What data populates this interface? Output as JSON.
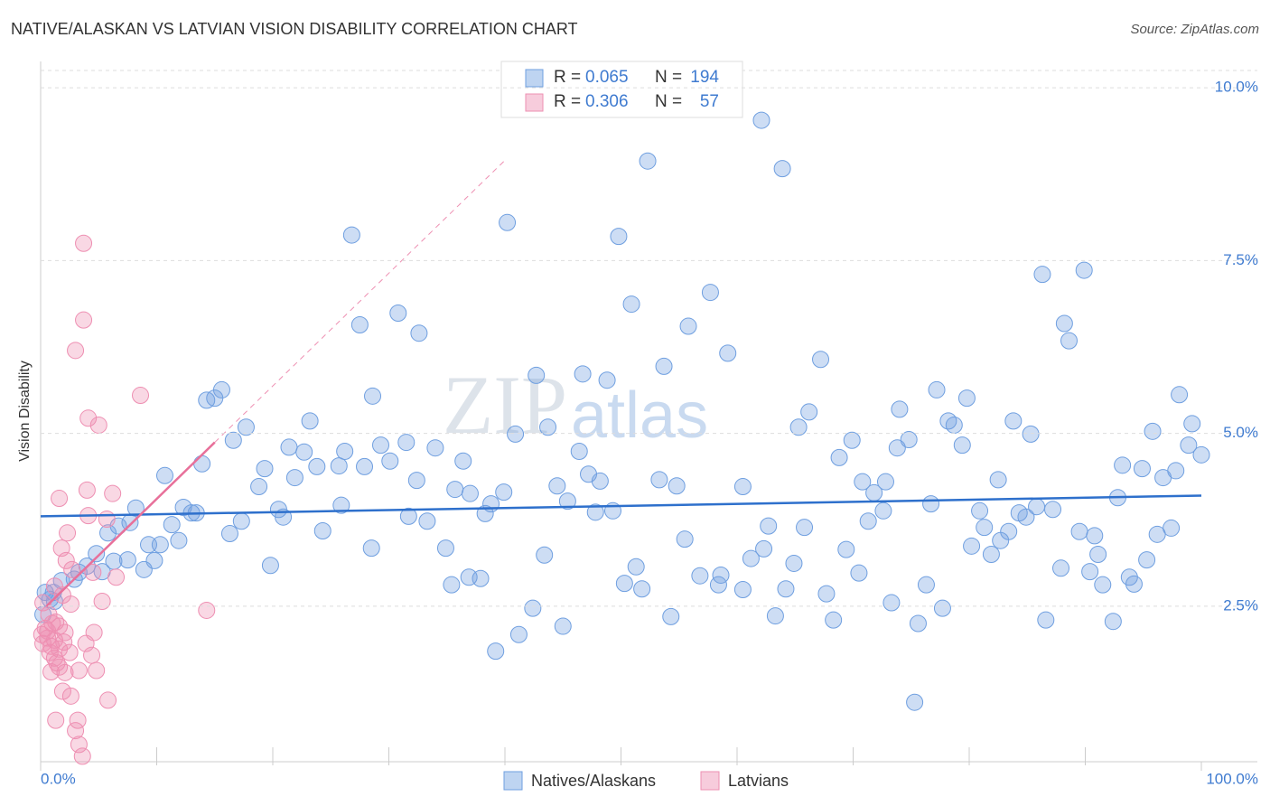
{
  "chart_data": {
    "type": "scatter",
    "title": "NATIVE/ALASKAN VS LATVIAN VISION DISABILITY CORRELATION CHART",
    "source": "Source: ZipAtlas.com",
    "y_label": "Vision Disability",
    "watermark": [
      "ZIP",
      "atlas"
    ],
    "xlim": [
      0,
      100
    ],
    "ylim": [
      0.25,
      10.25
    ],
    "xticks": [
      {
        "value": 0,
        "label": "0.0%"
      },
      {
        "value": 100,
        "label": "100.0%"
      }
    ],
    "xminorticks": [
      10,
      20,
      30,
      40,
      50,
      60,
      70,
      80,
      90
    ],
    "yticks": [
      {
        "value": 2.5,
        "label": "2.5%"
      },
      {
        "value": 5,
        "label": "5.0%"
      },
      {
        "value": 7.5,
        "label": "7.5%"
      },
      {
        "value": 10,
        "label": "10.0%"
      }
    ],
    "grid": true,
    "legend_labels": {
      "r": "R =",
      "n": "N ="
    },
    "series": [
      {
        "name": "Natives/Alaskans",
        "color": "#6f9fe0",
        "r": 0.065,
        "n": 194,
        "x": [
          62.1,
          52.3,
          63.9,
          40.2,
          49.8,
          26.8,
          86.3,
          89.9,
          57.7,
          50.9,
          30.8,
          27.5,
          55.8,
          32.6,
          88.2,
          88.6,
          59.2,
          67.2,
          53.7,
          42.7,
          46.7,
          48.8,
          77.2,
          79.8,
          98.1,
          15.6,
          15.0,
          14.3,
          28.6,
          74.0,
          66.2,
          78.2,
          83.8,
          99.2,
          23.2,
          17.7,
          43.7,
          65.3,
          78.7,
          95.8,
          40.9,
          85.3,
          16.6,
          69.9,
          74.8,
          21.4,
          31.5,
          29.3,
          34.0,
          73.8,
          79.4,
          98.9,
          22.7,
          26.2,
          13.9,
          46.4,
          36.4,
          100,
          30.1,
          25.7,
          19.3,
          27.9,
          23.8,
          47.2,
          68.8,
          93.2,
          94.9,
          97.8,
          96.7,
          10.7,
          32.4,
          21.9,
          53.3,
          82.5,
          48.2,
          44.5,
          18.8,
          54.8,
          70.8,
          72.8,
          35.7,
          60.5,
          37.0,
          39.9,
          71.8,
          8.2,
          12.3,
          45.4,
          92.8,
          25.9,
          38.8,
          76.7,
          13.0,
          49.3,
          85.8,
          87.2,
          20.5,
          47.8,
          80.9,
          72.6,
          13.4,
          38.3,
          84.3,
          20.9,
          7.7,
          31.7,
          33.3,
          71.3,
          84.9,
          17.3,
          11.3,
          6.7,
          62.7,
          65.8,
          81.3,
          83.4,
          97.4,
          5.8,
          24.3,
          89.5,
          96.2,
          16.3,
          11.9,
          82.7,
          90.8,
          55.5,
          9.3,
          10.3,
          62.3,
          28.5,
          34.9,
          69.4,
          80.2,
          81.9,
          91.1,
          4.8,
          43.4,
          7.5,
          9.8,
          61.2,
          95.3,
          6.3,
          19.8,
          64.9,
          51.3,
          4.0,
          87.9,
          90.4,
          8.9,
          5.3,
          70.5,
          56.8,
          58.6,
          3.3,
          93.8,
          36.9,
          37.9,
          1.8,
          2.9,
          50.3,
          76.3,
          35.4,
          58.4,
          64.2,
          67.7,
          91.5,
          94.2,
          51.8,
          60.5,
          1.1,
          0.4,
          0.8,
          1.2,
          73.3,
          77.7,
          42.4,
          63.3,
          54.3,
          68.3,
          86.6,
          92.4,
          75.6,
          45.0,
          41.2,
          39.2,
          75.3,
          0.2
        ],
        "values": [
          9.53,
          8.94,
          8.83,
          8.05,
          7.85,
          7.87,
          7.3,
          7.36,
          7.04,
          6.87,
          6.74,
          6.57,
          6.55,
          6.45,
          6.59,
          6.34,
          6.16,
          6.07,
          5.97,
          5.84,
          5.86,
          5.77,
          5.63,
          5.51,
          5.56,
          5.63,
          5.51,
          5.48,
          5.54,
          5.35,
          5.31,
          5.18,
          5.18,
          5.14,
          5.18,
          5.09,
          5.09,
          5.09,
          5.12,
          5.03,
          4.99,
          4.99,
          4.9,
          4.9,
          4.91,
          4.8,
          4.87,
          4.83,
          4.79,
          4.79,
          4.83,
          4.83,
          4.73,
          4.74,
          4.56,
          4.74,
          4.6,
          4.69,
          4.6,
          4.53,
          4.49,
          4.52,
          4.52,
          4.41,
          4.65,
          4.54,
          4.49,
          4.46,
          4.36,
          4.39,
          4.32,
          4.36,
          4.33,
          4.33,
          4.31,
          4.24,
          4.23,
          4.24,
          4.3,
          4.3,
          4.19,
          4.23,
          4.13,
          4.15,
          4.14,
          3.92,
          3.93,
          4.02,
          4.07,
          3.96,
          3.98,
          3.98,
          3.85,
          3.88,
          3.94,
          3.9,
          3.9,
          3.86,
          3.88,
          3.88,
          3.85,
          3.84,
          3.85,
          3.79,
          3.71,
          3.8,
          3.73,
          3.73,
          3.79,
          3.73,
          3.68,
          3.66,
          3.66,
          3.64,
          3.64,
          3.58,
          3.63,
          3.56,
          3.59,
          3.58,
          3.54,
          3.55,
          3.45,
          3.45,
          3.52,
          3.47,
          3.39,
          3.39,
          3.33,
          3.34,
          3.34,
          3.32,
          3.37,
          3.25,
          3.25,
          3.26,
          3.24,
          3.17,
          3.16,
          3.19,
          3.17,
          3.15,
          3.09,
          3.12,
          3.07,
          3.08,
          3.05,
          3.0,
          3.03,
          3.0,
          2.98,
          2.94,
          2.95,
          2.99,
          2.92,
          2.92,
          2.9,
          2.87,
          2.89,
          2.83,
          2.81,
          2.81,
          2.81,
          2.75,
          2.68,
          2.81,
          2.82,
          2.75,
          2.74,
          2.7,
          2.7,
          2.6,
          2.57,
          2.55,
          2.47,
          2.47,
          2.36,
          2.35,
          2.3,
          2.3,
          2.28,
          2.25,
          2.21,
          2.09,
          1.85,
          1.11,
          2.38
        ],
        "trend": {
          "x": [
            0,
            100
          ],
          "values": [
            3.8,
            4.1
          ]
        }
      },
      {
        "name": "Latvians",
        "color": "#ee8fb2",
        "r": 0.306,
        "n": 57,
        "x": [
          3.7,
          3.7,
          3.0,
          8.6,
          4.1,
          5.0,
          1.6,
          4.0,
          6.2,
          4.1,
          5.7,
          2.3,
          1.8,
          2.2,
          4.5,
          6.5,
          2.7,
          1.2,
          1.9,
          2.6,
          5.3,
          14.3,
          0.2,
          0.7,
          1.3,
          1.0,
          0.4,
          1.6,
          2.1,
          0.1,
          4.6,
          0.6,
          1.2,
          2.0,
          0.2,
          0.9,
          1.6,
          2.5,
          1.2,
          4.4,
          0.9,
          1.6,
          2.1,
          3.3,
          4.8,
          1.9,
          2.6,
          5.8,
          1.3,
          3.2,
          3.0,
          3.3,
          3.6,
          0.6,
          0.8,
          1.4,
          3.9
        ],
        "values": [
          7.75,
          6.64,
          6.2,
          5.55,
          5.22,
          5.12,
          4.06,
          4.18,
          4.13,
          3.81,
          3.76,
          3.56,
          3.34,
          3.16,
          2.99,
          2.92,
          3.03,
          2.79,
          2.66,
          2.53,
          2.57,
          2.44,
          2.55,
          2.38,
          2.27,
          2.25,
          2.18,
          2.21,
          2.12,
          2.09,
          2.12,
          2.04,
          2.01,
          1.98,
          1.96,
          1.92,
          1.88,
          1.83,
          1.75,
          1.79,
          1.55,
          1.62,
          1.54,
          1.57,
          1.57,
          1.27,
          1.2,
          1.14,
          0.85,
          0.85,
          0.7,
          0.5,
          0.33,
          2.14,
          1.83,
          1.68,
          1.96
        ],
        "trend": {
          "x": [
            0.5,
            15
          ],
          "values": [
            2.5,
            4.87
          ]
        },
        "trend_extension": {
          "x": [
            15,
            40
          ],
          "values": [
            4.87,
            8.95
          ]
        }
      }
    ]
  }
}
